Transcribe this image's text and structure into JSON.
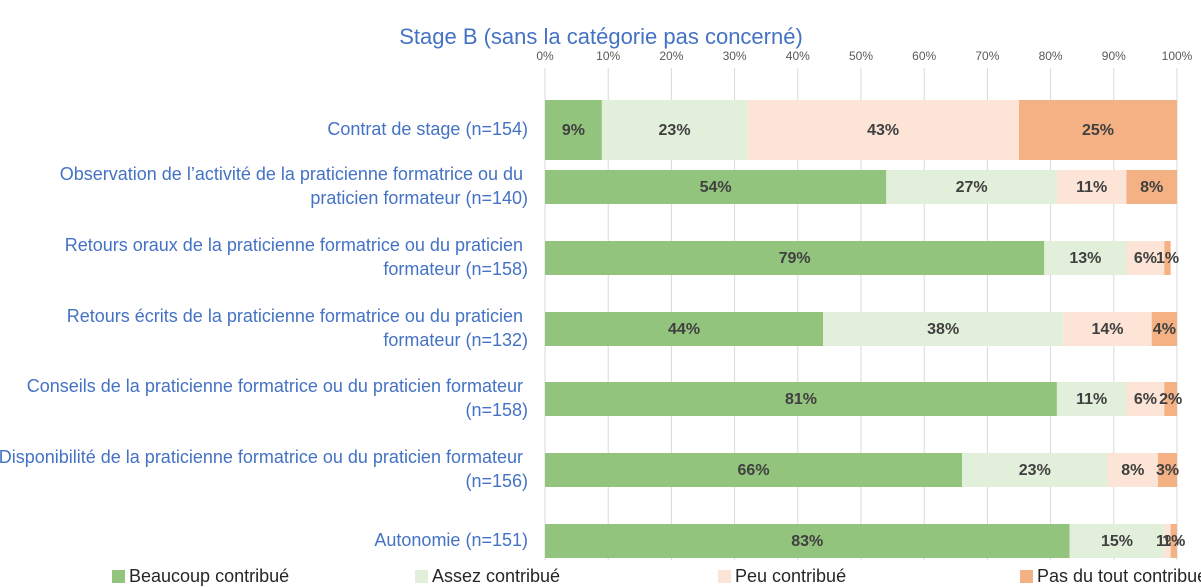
{
  "chart_data": {
    "type": "stacked_barh",
    "title": "Stage B (sans la catégorie pas concerné)",
    "categories": [
      "Contrat de stage (n=154)",
      "Observation de l’activité de la praticienne formatrice ou du praticien formateur (n=140)",
      "Retours oraux de la praticienne formatrice ou du praticien formateur (n=158)",
      "Retours écrits de la praticienne formatrice ou du praticien formateur (n=132)",
      "Conseils de la praticienne formatrice ou du praticien formateur (n=158)",
      "Disponibilité de la praticienne formatrice ou du praticien formateur (n=156)",
      "Autonomie (n=151)"
    ],
    "series": [
      {
        "name": "Beaucoup contribué",
        "color": "#93c47d",
        "values": [
          9,
          54,
          79,
          44,
          81,
          66,
          83
        ],
        "value_labels": [
          "9%",
          "54%",
          "79%",
          "44%",
          "81%",
          "66%",
          "83%"
        ]
      },
      {
        "name": "Assez contribué",
        "color": "#e2efda",
        "values": [
          23,
          27,
          13,
          38,
          11,
          23,
          15
        ],
        "value_labels": [
          "23%",
          "27%",
          "13%",
          "38%",
          "11%",
          "23%",
          "15%"
        ]
      },
      {
        "name": "Peu contribué",
        "color": "#fce4d6",
        "values": [
          43,
          11,
          6,
          14,
          6,
          8,
          1
        ],
        "value_labels": [
          "43%",
          "11%",
          "6%",
          "14%",
          "6%",
          "8%",
          "1%"
        ]
      },
      {
        "name": "Pas du tout contribué",
        "color": "#f4b183",
        "values": [
          25,
          8,
          1,
          4,
          2,
          3,
          1
        ],
        "value_labels": [
          "25%",
          "8%",
          "1%",
          "4%",
          "2%",
          "3%",
          "1%"
        ]
      }
    ],
    "xlim": [
      0,
      100
    ],
    "xticks": [
      {
        "value": 0,
        "label": "0%"
      },
      {
        "value": 10,
        "label": "10%"
      },
      {
        "value": 20,
        "label": "20%"
      },
      {
        "value": 30,
        "label": "30%"
      },
      {
        "value": 40,
        "label": "40%"
      },
      {
        "value": 50,
        "label": "50%"
      },
      {
        "value": 60,
        "label": "60%"
      },
      {
        "value": 70,
        "label": "70%"
      },
      {
        "value": 80,
        "label": "80%"
      },
      {
        "value": 90,
        "label": "90%"
      },
      {
        "value": 100,
        "label": "100%"
      }
    ],
    "grid": true,
    "legend": "bottom"
  }
}
